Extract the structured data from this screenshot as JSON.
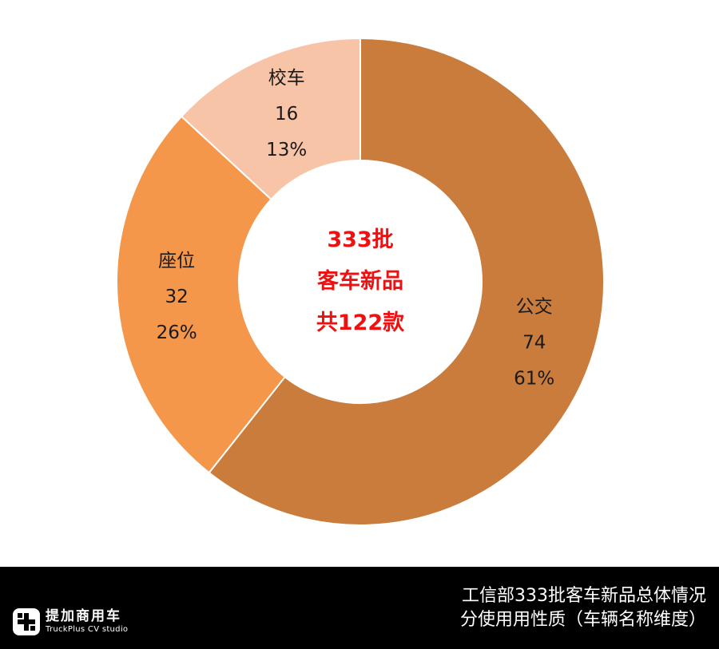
{
  "chart_data": {
    "type": "donut",
    "slices": [
      {
        "name": "公交",
        "value": 74,
        "percent": "61%",
        "color": "#c97c3c"
      },
      {
        "name": "座位",
        "value": 32,
        "percent": "26%",
        "color": "#f4974a"
      },
      {
        "name": "校车",
        "value": 16,
        "percent": "13%",
        "color": "#f8c4a8"
      }
    ],
    "center_text": [
      "333批",
      "客车新品",
      "共122款"
    ],
    "center_text_color": "#ee1111",
    "legend": "none",
    "slice_border_color": "#ffffff"
  },
  "footer": {
    "background": "#000000",
    "logo_name": "提加商用车",
    "logo_sub": "TruckPlus CV studio",
    "caption_line1": "工信部333批客车新品总体情况",
    "caption_line2": "分使用用性质（车辆名称维度）"
  }
}
